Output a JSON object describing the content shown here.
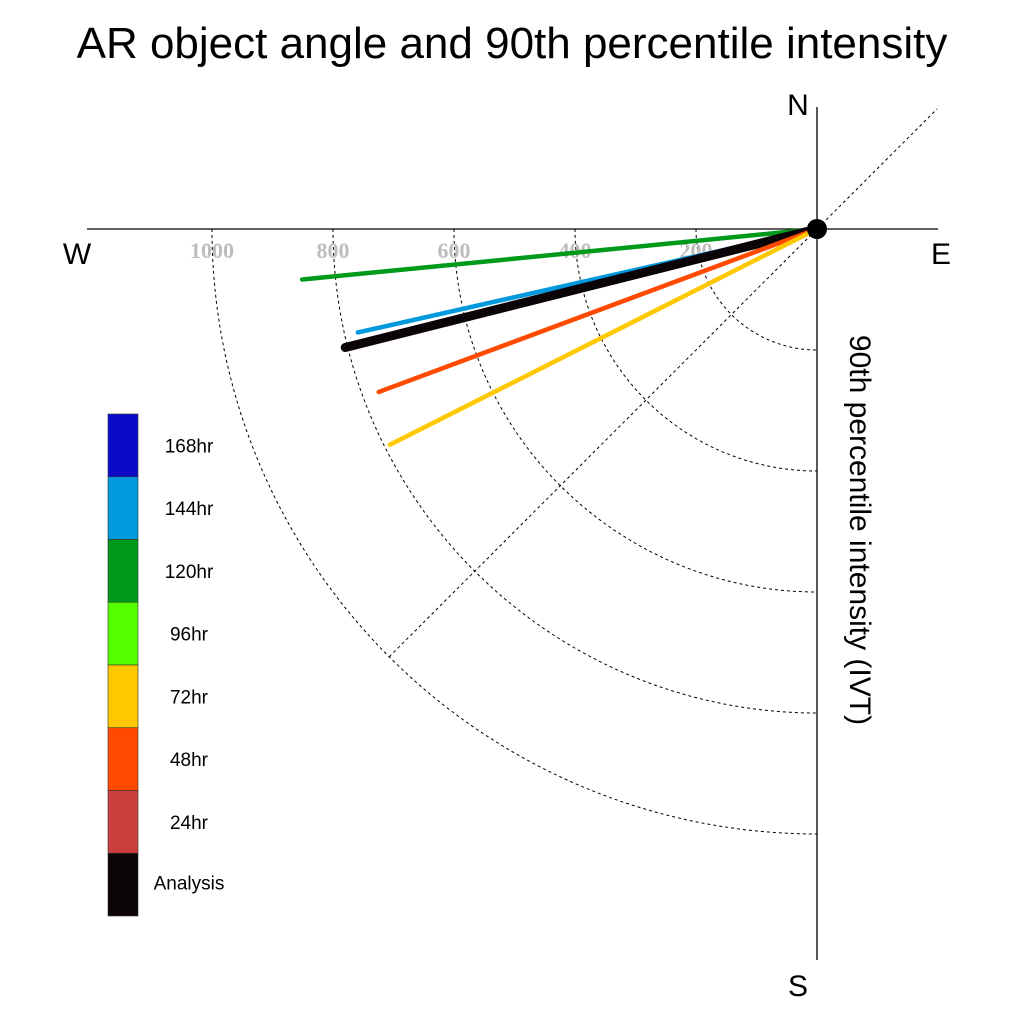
{
  "chart_data": {
    "type": "polar-line",
    "title": "AR object angle and 90th percentile intensity",
    "ylabel": "90th percentile intensity (IVT)",
    "compass": {
      "north": "N",
      "south": "S",
      "east": "E",
      "west": "W"
    },
    "radial_ticks": [
      200,
      400,
      600,
      800,
      1000
    ],
    "radial_tick_labels": [
      "200",
      "400",
      "600",
      "800",
      "1000"
    ],
    "radial_range": [
      0,
      1000
    ],
    "grid": true,
    "legend_placement": "left",
    "legend": [
      {
        "label": "168hr",
        "color": "#0a0ac8"
      },
      {
        "label": "144hr",
        "color": "#0099dd"
      },
      {
        "label": "120hr",
        "color": "#009a1a"
      },
      {
        "label": "96hr",
        "color": "#55ff00"
      },
      {
        "label": "72hr",
        "color": "#ffc800"
      },
      {
        "label": "48hr",
        "color": "#ff4a00"
      },
      {
        "label": "24hr",
        "color": "#cc3d3d"
      },
      {
        "label": "Analysis",
        "color": "#0a0308"
      }
    ],
    "series": [
      {
        "name": "120hr",
        "angle_deg_south_of_west": 5.6,
        "intensity": 855,
        "color": "#009a1a"
      },
      {
        "name": "144hr",
        "angle_deg_south_of_west": 12.7,
        "intensity": 778,
        "color": "#0099dd"
      },
      {
        "name": "Analysis",
        "angle_deg_south_of_west": 14.1,
        "intensity": 804,
        "color": "#0a0308"
      },
      {
        "name": "48hr",
        "angle_deg_south_of_west": 20.4,
        "intensity": 773,
        "color": "#ff4a00"
      },
      {
        "name": "72hr",
        "angle_deg_south_of_west": 26.8,
        "intensity": 791,
        "color": "#ffc800"
      }
    ]
  }
}
